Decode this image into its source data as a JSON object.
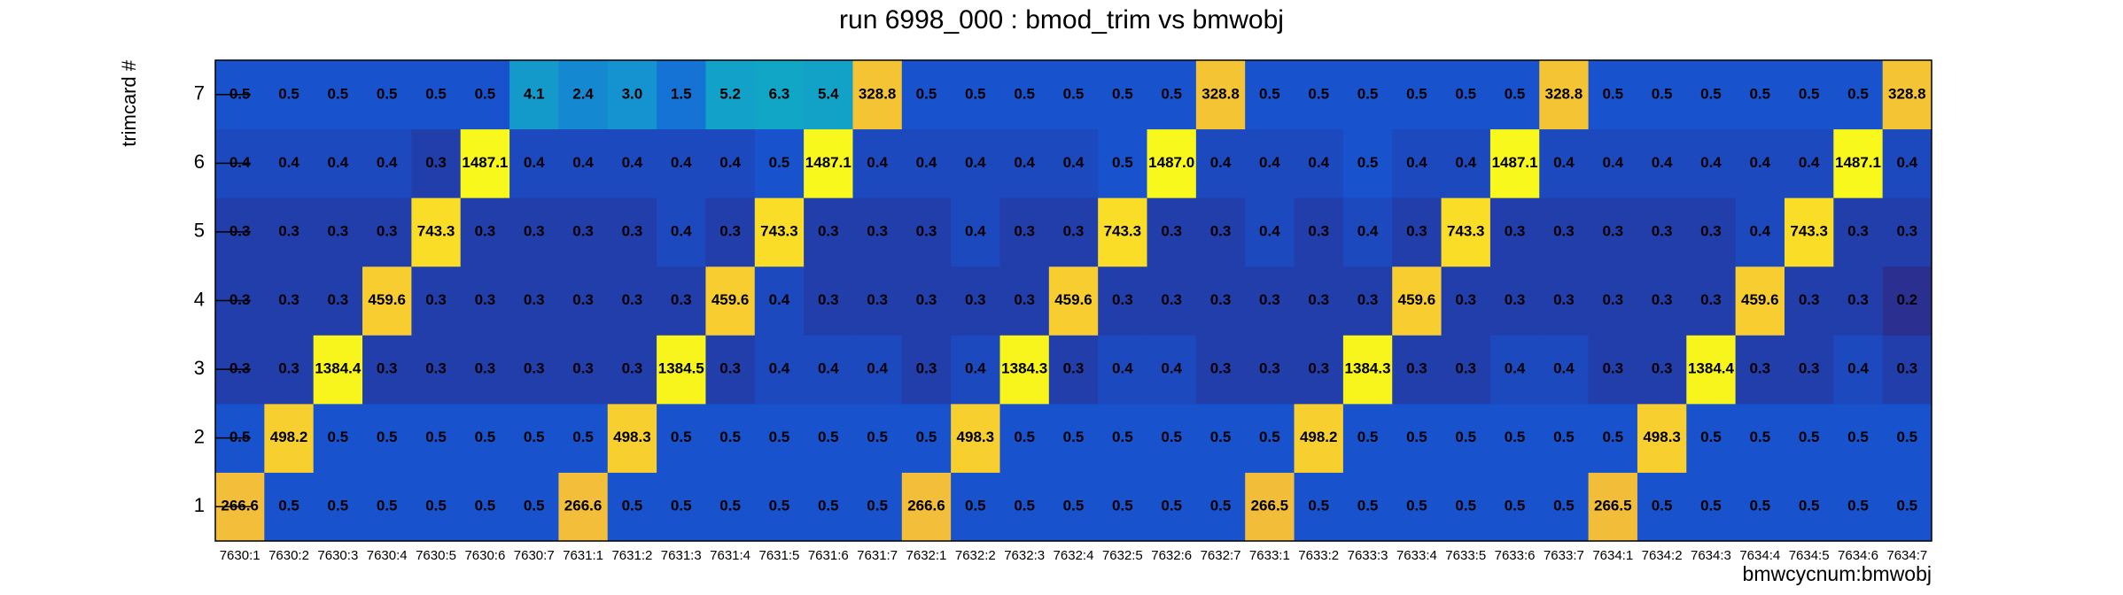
{
  "chart_data": {
    "type": "heatmap",
    "title": "run 6998_000 : bmod_trim vs bmwobj",
    "x_label": "bmwcycnum:bmwobj",
    "y_label": "trimcard #",
    "x_categories": [
      "7630:1",
      "7630:2",
      "7630:3",
      "7630:4",
      "7630:5",
      "7630:6",
      "7630:7",
      "7631:1",
      "7631:2",
      "7631:3",
      "7631:4",
      "7631:5",
      "7631:6",
      "7631:7",
      "7632:1",
      "7632:2",
      "7632:3",
      "7632:4",
      "7632:5",
      "7632:6",
      "7632:7",
      "7633:1",
      "7633:2",
      "7633:3",
      "7633:4",
      "7633:5",
      "7633:6",
      "7633:7",
      "7634:1",
      "7634:2",
      "7634:3",
      "7634:4",
      "7634:5",
      "7634:6",
      "7634:7"
    ],
    "y_categories": [
      1,
      2,
      3,
      4,
      5,
      6,
      7
    ],
    "z_scale": "log",
    "palette": [
      "#2b2f8f",
      "#1851cc",
      "#1768d8",
      "#1591d0",
      "#10a9c4",
      "#35b8a0",
      "#7cbf7a",
      "#c0bd55",
      "#f2bc3a",
      "#f9d52a",
      "#f8f81c"
    ],
    "z": [
      [
        266.6,
        0.5,
        0.5,
        0.5,
        0.5,
        0.5,
        0.5,
        266.6,
        0.5,
        0.5,
        0.5,
        0.5,
        0.5,
        0.5,
        266.6,
        0.5,
        0.5,
        0.5,
        0.5,
        0.5,
        0.5,
        266.5,
        0.5,
        0.5,
        0.5,
        0.5,
        0.5,
        0.5,
        266.5,
        0.5,
        0.5,
        0.5,
        0.5,
        0.5,
        0.5
      ],
      [
        0.5,
        498.2,
        0.5,
        0.5,
        0.5,
        0.5,
        0.5,
        0.5,
        498.3,
        0.5,
        0.5,
        0.5,
        0.5,
        0.5,
        0.5,
        498.3,
        0.5,
        0.5,
        0.5,
        0.5,
        0.5,
        0.5,
        498.2,
        0.5,
        0.5,
        0.5,
        0.5,
        0.5,
        0.5,
        498.3,
        0.5,
        0.5,
        0.5,
        0.5,
        0.5
      ],
      [
        0.3,
        0.3,
        1384.4,
        0.3,
        0.3,
        0.3,
        0.3,
        0.3,
        0.3,
        1384.5,
        0.3,
        0.4,
        0.4,
        0.4,
        0.3,
        0.4,
        1384.3,
        0.3,
        0.4,
        0.4,
        0.3,
        0.3,
        0.3,
        1384.3,
        0.3,
        0.3,
        0.4,
        0.4,
        0.3,
        0.3,
        1384.4,
        0.3,
        0.3,
        0.4,
        0.3
      ],
      [
        0.3,
        0.3,
        0.3,
        459.6,
        0.3,
        0.3,
        0.3,
        0.3,
        0.3,
        0.3,
        459.6,
        0.4,
        0.3,
        0.3,
        0.3,
        0.3,
        0.3,
        459.6,
        0.3,
        0.3,
        0.3,
        0.3,
        0.3,
        0.3,
        459.6,
        0.3,
        0.3,
        0.3,
        0.3,
        0.3,
        0.3,
        459.6,
        0.3,
        0.3,
        0.2
      ],
      [
        0.3,
        0.3,
        0.3,
        0.3,
        743.3,
        0.3,
        0.3,
        0.3,
        0.3,
        0.4,
        0.3,
        743.3,
        0.3,
        0.3,
        0.3,
        0.4,
        0.3,
        0.3,
        743.3,
        0.3,
        0.3,
        0.4,
        0.3,
        0.4,
        0.3,
        743.3,
        0.3,
        0.3,
        0.3,
        0.3,
        0.3,
        0.4,
        743.3,
        0.3,
        0.3
      ],
      [
        0.4,
        0.4,
        0.4,
        0.4,
        0.3,
        1487.1,
        0.4,
        0.4,
        0.4,
        0.4,
        0.4,
        0.5,
        1487.1,
        0.4,
        0.4,
        0.4,
        0.4,
        0.4,
        0.5,
        1487.0,
        0.4,
        0.4,
        0.4,
        0.5,
        0.4,
        0.4,
        1487.1,
        0.4,
        0.4,
        0.4,
        0.4,
        0.4,
        0.4,
        1487.1,
        0.4
      ],
      [
        0.5,
        0.5,
        0.5,
        0.5,
        0.5,
        0.5,
        4.1,
        2.4,
        3.0,
        1.5,
        5.2,
        6.3,
        5.4,
        328.8,
        0.5,
        0.5,
        0.5,
        0.5,
        0.5,
        0.5,
        328.8,
        0.5,
        0.5,
        0.5,
        0.5,
        0.5,
        0.5,
        328.8,
        0.5,
        0.5,
        0.5,
        0.5,
        0.5,
        0.5,
        328.8
      ]
    ],
    "value_labels": [
      [
        "266.6",
        "0.5",
        "0.5",
        "0.5",
        "0.5",
        "0.5",
        "0.5",
        "266.6",
        "0.5",
        "0.5",
        "0.5",
        "0.5",
        "0.5",
        "0.5",
        "266.6",
        "0.5",
        "0.5",
        "0.5",
        "0.5",
        "0.5",
        "0.5",
        "266.5",
        "0.5",
        "0.5",
        "0.5",
        "0.5",
        "0.5",
        "0.5",
        "266.5",
        "0.5",
        "0.5",
        "0.5",
        "0.5",
        "0.5",
        "0.5"
      ],
      [
        "0.5",
        "498.2",
        "0.5",
        "0.5",
        "0.5",
        "0.5",
        "0.5",
        "0.5",
        "498.3",
        "0.5",
        "0.5",
        "0.5",
        "0.5",
        "0.5",
        "0.5",
        "498.3",
        "0.5",
        "0.5",
        "0.5",
        "0.5",
        "0.5",
        "0.5",
        "498.2",
        "0.5",
        "0.5",
        "0.5",
        "0.5",
        "0.5",
        "0.5",
        "498.3",
        "0.5",
        "0.5",
        "0.5",
        "0.5",
        "0.5"
      ],
      [
        "0.3",
        "0.3",
        "1384.4",
        "0.3",
        "0.3",
        "0.3",
        "0.3",
        "0.3",
        "0.3",
        "1384.5",
        "0.3",
        "0.4",
        "0.4",
        "0.4",
        "0.3",
        "0.4",
        "1384.3",
        "0.3",
        "0.4",
        "0.4",
        "0.3",
        "0.3",
        "0.3",
        "1384.3",
        "0.3",
        "0.3",
        "0.4",
        "0.4",
        "0.3",
        "0.3",
        "1384.4",
        "0.3",
        "0.3",
        "0.4",
        "0.3"
      ],
      [
        "0.3",
        "0.3",
        "0.3",
        "459.6",
        "0.3",
        "0.3",
        "0.3",
        "0.3",
        "0.3",
        "0.3",
        "459.6",
        "0.4",
        "0.3",
        "0.3",
        "0.3",
        "0.3",
        "0.3",
        "459.6",
        "0.3",
        "0.3",
        "0.3",
        "0.3",
        "0.3",
        "0.3",
        "459.6",
        "0.3",
        "0.3",
        "0.3",
        "0.3",
        "0.3",
        "0.3",
        "459.6",
        "0.3",
        "0.3",
        "0.2"
      ],
      [
        "0.3",
        "0.3",
        "0.3",
        "0.3",
        "743.3",
        "0.3",
        "0.3",
        "0.3",
        "0.3",
        "0.4",
        "0.3",
        "743.3",
        "0.3",
        "0.3",
        "0.3",
        "0.4",
        "0.3",
        "0.3",
        "743.3",
        "0.3",
        "0.3",
        "0.4",
        "0.3",
        "0.4",
        "0.3",
        "743.3",
        "0.3",
        "0.3",
        "0.3",
        "0.3",
        "0.3",
        "0.4",
        "743.3",
        "0.3",
        "0.3"
      ],
      [
        "0.4",
        "0.4",
        "0.4",
        "0.4",
        "0.3",
        "1487.1",
        "0.4",
        "0.4",
        "0.4",
        "0.4",
        "0.4",
        "0.5",
        "1487.1",
        "0.4",
        "0.4",
        "0.4",
        "0.4",
        "0.4",
        "0.5",
        "1487.0",
        "0.4",
        "0.4",
        "0.4",
        "0.5",
        "0.4",
        "0.4",
        "1487.1",
        "0.4",
        "0.4",
        "0.4",
        "0.4",
        "0.4",
        "0.4",
        "1487.1",
        "0.4"
      ],
      [
        "0.5",
        "0.5",
        "0.5",
        "0.5",
        "0.5",
        "0.5",
        "4.1",
        "2.4",
        "3.0",
        "1.5",
        "5.2",
        "6.3",
        "5.4",
        "328.8",
        "0.5",
        "0.5",
        "0.5",
        "0.5",
        "0.5",
        "0.5",
        "328.8",
        "0.5",
        "0.5",
        "0.5",
        "0.5",
        "0.5",
        "0.5",
        "328.8",
        "0.5",
        "0.5",
        "0.5",
        "0.5",
        "0.5",
        "0.5",
        "328.8"
      ]
    ]
  }
}
